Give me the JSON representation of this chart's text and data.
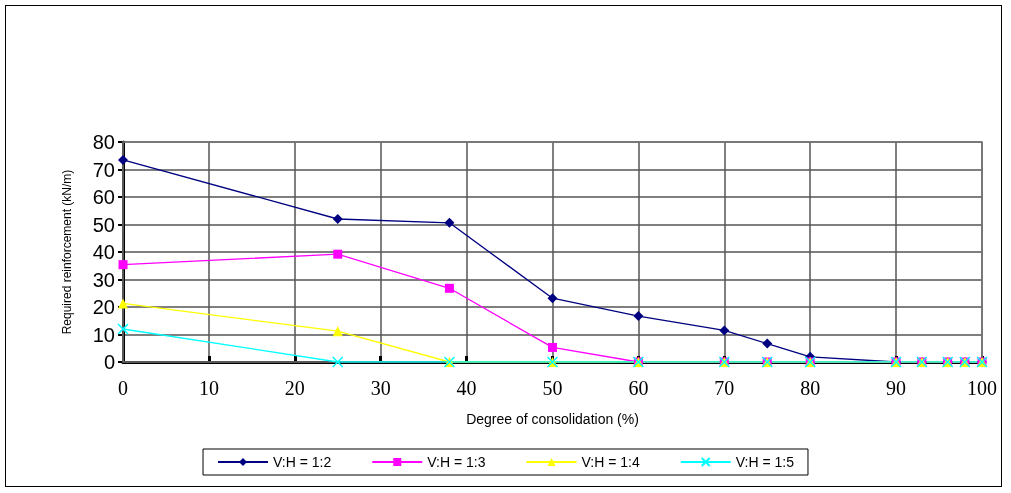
{
  "chart_data": {
    "type": "line",
    "xlabel": "Degree of consolidation (%)",
    "ylabel": "Required reinforcement (kN/m)",
    "x": [
      0,
      25,
      38,
      50,
      60,
      70,
      75,
      80,
      90,
      93,
      96,
      98,
      100
    ],
    "series": [
      {
        "name": "V:H = 1:2",
        "color": "#000080",
        "marker": "diamond",
        "values": [
          73.5,
          52,
          50.6,
          23.2,
          16.7,
          11.5,
          6.7,
          1.9,
          0,
          0,
          0,
          0,
          0
        ]
      },
      {
        "name": "V:H = 1:3",
        "color": "#ff00ff",
        "marker": "square",
        "values": [
          35.4,
          39.2,
          26.8,
          5.3,
          0,
          0,
          0,
          0,
          0,
          0,
          0,
          0,
          0
        ]
      },
      {
        "name": "V:H = 1:4",
        "color": "#ffff00",
        "marker": "triangle",
        "values": [
          21.3,
          11.2,
          0,
          0,
          0,
          0,
          0,
          0,
          0,
          0,
          0,
          0,
          0
        ]
      },
      {
        "name": "V:H = 1:5",
        "color": "#00ffff",
        "marker": "cross",
        "values": [
          12,
          0,
          0,
          0,
          0,
          0,
          0,
          0,
          0,
          0,
          0,
          0,
          0
        ]
      }
    ],
    "xlim": [
      0,
      100
    ],
    "xticks": [
      0,
      10,
      20,
      30,
      40,
      50,
      60,
      70,
      80,
      90,
      100
    ],
    "ylim": [
      0,
      80
    ],
    "yticks": [
      0,
      10,
      20,
      30,
      40,
      50,
      60,
      70,
      80
    ],
    "grid": true,
    "legend": "bottom",
    "line_style": "solid"
  }
}
